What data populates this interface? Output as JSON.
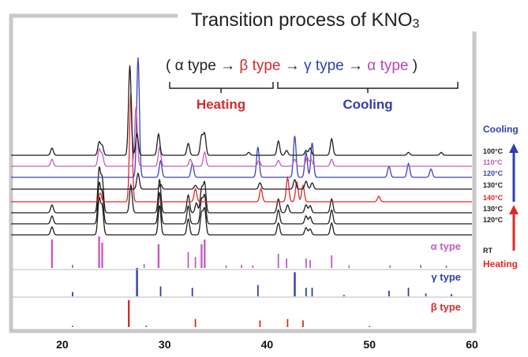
{
  "chart_data": {
    "type": "line",
    "title": "Transition process of KNO",
    "title_subscript": "3",
    "sequence": [
      {
        "text": "(",
        "color": "#222222"
      },
      {
        "text": "α type",
        "color": "#222222"
      },
      {
        "text": "→",
        "color": "#222222"
      },
      {
        "text": "β type",
        "color": "#d42a2a"
      },
      {
        "text": "→",
        "color": "#222222"
      },
      {
        "text": "γ type",
        "color": "#2f3fae"
      },
      {
        "text": "→",
        "color": "#222222"
      },
      {
        "text": "α type",
        "color": "#b448b0"
      },
      {
        "text": ")",
        "color": "#222222"
      }
    ],
    "groups": {
      "heating": {
        "label": "Heating",
        "color": "#d42a2a"
      },
      "cooling": {
        "label": "Cooling",
        "color": "#2f3fae"
      }
    },
    "xlim": [
      15,
      60
    ],
    "xticks": [
      "20",
      "30",
      "40",
      "50",
      "60"
    ],
    "xtick_values": [
      20,
      30,
      40,
      50,
      60
    ],
    "side_labels": {
      "cooling": "Cooling",
      "heating": "Heating",
      "rt": "RT"
    },
    "colors": {
      "alpha": "#c45cbf",
      "gamma": "#2f3fae",
      "beta": "#d42a2a",
      "black": "#1e1e1e"
    },
    "phase_peaks": {
      "alpha": [
        [
          19.0,
          0.9
        ],
        [
          23.6,
          1.0
        ],
        [
          23.9,
          0.8
        ],
        [
          29.4,
          0.75
        ],
        [
          32.3,
          0.5
        ],
        [
          33.0,
          0.35
        ],
        [
          33.6,
          0.75
        ],
        [
          33.9,
          0.9
        ],
        [
          41.1,
          0.45
        ],
        [
          41.9,
          0.3
        ],
        [
          43.8,
          0.3
        ],
        [
          44.2,
          0.25
        ],
        [
          46.3,
          0.4
        ]
      ],
      "gamma": [
        [
          27.3,
          1.0
        ],
        [
          29.6,
          0.35
        ],
        [
          32.7,
          0.3
        ],
        [
          39.1,
          0.4
        ],
        [
          42.7,
          0.85
        ],
        [
          43.8,
          0.3
        ],
        [
          44.4,
          0.3
        ],
        [
          51.9,
          0.2
        ],
        [
          53.8,
          0.3
        ]
      ],
      "beta": [
        [
          26.5,
          1.0
        ],
        [
          33.0,
          0.3
        ],
        [
          39.3,
          0.25
        ],
        [
          42.0,
          0.3
        ],
        [
          43.5,
          0.25
        ]
      ]
    },
    "series": [
      {
        "temp": "100°C",
        "phase": "alpha",
        "color": "#1e1e1e",
        "label_color": "#1e1e1e",
        "scale": 1.0,
        "row": 0
      },
      {
        "temp": "110°C",
        "phase": "mixed",
        "color": "#c45cbf",
        "label_color": "#c45cbf",
        "scale": 1.0,
        "row": 1
      },
      {
        "temp": "120°C",
        "phase": "gamma",
        "color": "#3b44b8",
        "label_color": "#3b44b8",
        "scale": 1.0,
        "row": 2
      },
      {
        "temp": "130°C",
        "phase": "gamma",
        "color": "#1e1e1e",
        "label_color": "#1e1e1e",
        "scale": 0.45,
        "row": 3
      },
      {
        "temp": "140°C",
        "phase": "beta",
        "color": "#e02828",
        "label_color": "#e02828",
        "scale": 1.0,
        "row": 4
      },
      {
        "temp": "130°C",
        "phase": "alpha",
        "color": "#1e1e1e",
        "label_color": "#1e1e1e",
        "scale": 0.85,
        "row": 5
      },
      {
        "temp": "120°C",
        "phase": "alpha",
        "color": "#1e1e1e",
        "label_color": "#1e1e1e",
        "scale": 0.85,
        "row": 6
      },
      {
        "temp": "RT",
        "phase": "alpha",
        "color": "#1e1e1e",
        "label_color": "#1e1e1e",
        "scale": 0.85,
        "row": 7
      }
    ],
    "references": [
      {
        "name": "α type",
        "phase": "alpha",
        "color": "#c45cbf"
      },
      {
        "name": "γ type",
        "phase": "gamma",
        "color": "#2f3fae"
      },
      {
        "name": "β type",
        "phase": "beta",
        "color": "#d42a2a"
      }
    ]
  }
}
